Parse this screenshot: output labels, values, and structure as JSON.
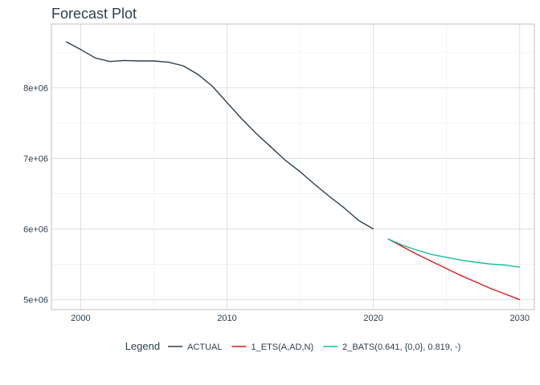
{
  "chart_data": {
    "type": "line",
    "title": "Forecast Plot",
    "xlabel": "",
    "ylabel": "",
    "xlim": [
      1998,
      2031
    ],
    "ylim": [
      4860000,
      8900000
    ],
    "x_ticks": [
      2000,
      2010,
      2020,
      2030
    ],
    "x_tick_labels": [
      "2000",
      "2010",
      "2020",
      "2030"
    ],
    "y_ticks": [
      5000000,
      6000000,
      7000000,
      8000000
    ],
    "y_tick_labels": [
      "5e+06",
      "6e+06",
      "7e+06",
      "8e+06"
    ],
    "grid": true,
    "legend_placement": "bottom",
    "legend_title": "Legend",
    "series": [
      {
        "name": "ACTUAL",
        "color": "#2c3e50",
        "x": [
          1999,
          2000,
          2001,
          2002,
          2003,
          2004,
          2005,
          2006,
          2007,
          2008,
          2009,
          2010,
          2011,
          2012,
          2013,
          2014,
          2015,
          2016,
          2017,
          2018,
          2019,
          2020
        ],
        "values": [
          8650000,
          8540000,
          8420000,
          8370000,
          8385000,
          8378000,
          8378000,
          8360000,
          8310000,
          8190000,
          8020000,
          7790000,
          7560000,
          7350000,
          7160000,
          6970000,
          6810000,
          6630000,
          6460000,
          6300000,
          6120000,
          6000000
        ]
      },
      {
        "name": "1_ETS(A,AD,N)",
        "color": "#e31a1c",
        "x": [
          2021,
          2022,
          2023,
          2024,
          2025,
          2026,
          2027,
          2028,
          2029,
          2030
        ],
        "values": [
          5860000,
          5750000,
          5640000,
          5540000,
          5440000,
          5340000,
          5250000,
          5160000,
          5080000,
          5000000
        ]
      },
      {
        "name": "2_BATS(0.641, {0,0}, 0.819, -)",
        "color": "#18bc9c",
        "x": [
          2021,
          2022,
          2023,
          2024,
          2025,
          2026,
          2027,
          2028,
          2029,
          2030
        ],
        "values": [
          5860000,
          5770000,
          5700000,
          5640000,
          5600000,
          5560000,
          5530000,
          5505000,
          5490000,
          5460000
        ]
      }
    ]
  }
}
